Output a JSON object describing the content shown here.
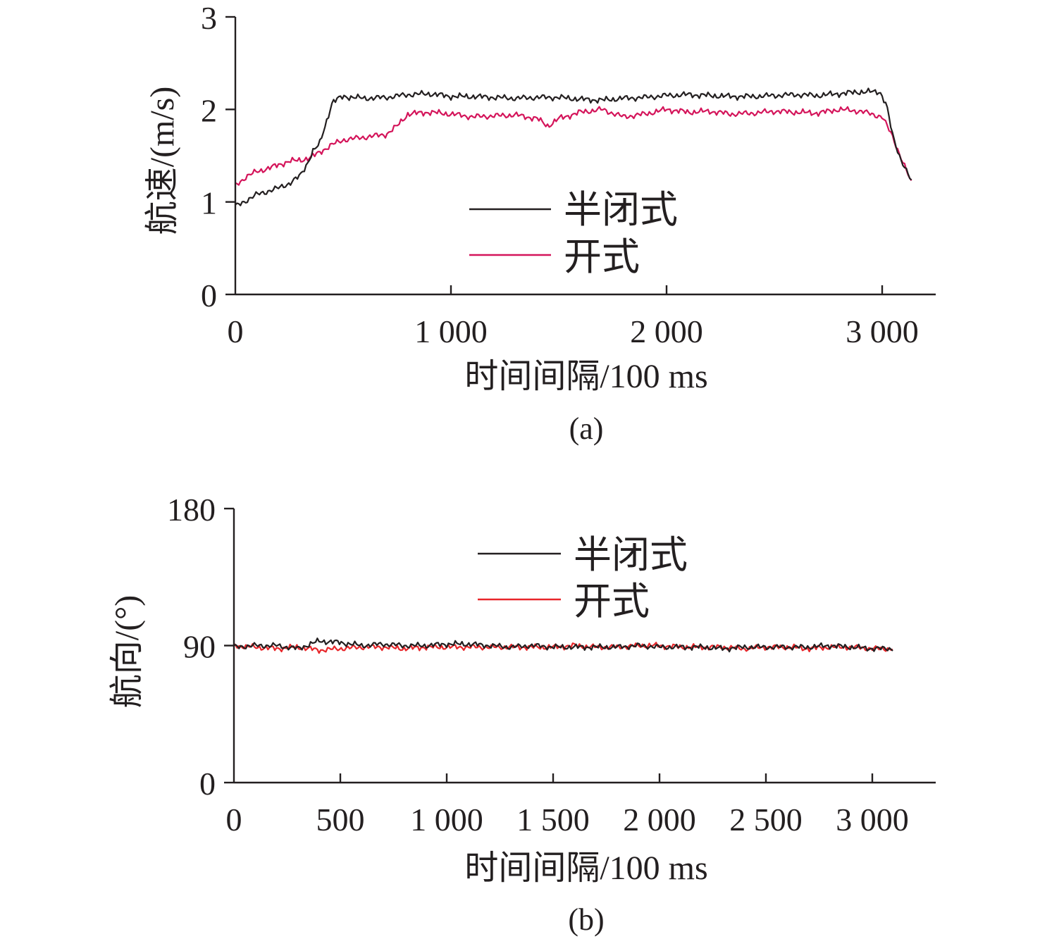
{
  "chart_data": [
    {
      "type": "line",
      "panel_label": "(a)",
      "xlabel": "时间间隔/100 ms",
      "ylabel": "航速/(m/s)",
      "xlim": [
        0,
        3250
      ],
      "ylim": [
        0,
        3
      ],
      "x_ticks": [
        0,
        1000,
        2000,
        3000
      ],
      "x_tick_labels": [
        "0",
        "1 000",
        "2 000",
        "3 000"
      ],
      "y_ticks": [
        0,
        1,
        2,
        3
      ],
      "y_tick_labels": [
        "0",
        "1",
        "2",
        "3"
      ],
      "legend_position": "center",
      "series": [
        {
          "name": "半闭式",
          "color": "#231f20",
          "points": [
            [
              0,
              0.95
            ],
            [
              100,
              1.08
            ],
            [
              200,
              1.15
            ],
            [
              250,
              1.2
            ],
            [
              300,
              1.28
            ],
            [
              330,
              1.4
            ],
            [
              360,
              1.55
            ],
            [
              390,
              1.62
            ],
            [
              420,
              1.85
            ],
            [
              450,
              2.08
            ],
            [
              500,
              2.14
            ],
            [
              600,
              2.12
            ],
            [
              700,
              2.13
            ],
            [
              800,
              2.16
            ],
            [
              900,
              2.17
            ],
            [
              1000,
              2.14
            ],
            [
              1100,
              2.14
            ],
            [
              1200,
              2.13
            ],
            [
              1300,
              2.12
            ],
            [
              1400,
              2.13
            ],
            [
              1500,
              2.13
            ],
            [
              1600,
              2.11
            ],
            [
              1700,
              2.1
            ],
            [
              1800,
              2.12
            ],
            [
              1900,
              2.13
            ],
            [
              2000,
              2.15
            ],
            [
              2100,
              2.16
            ],
            [
              2200,
              2.15
            ],
            [
              2300,
              2.14
            ],
            [
              2400,
              2.14
            ],
            [
              2500,
              2.15
            ],
            [
              2600,
              2.16
            ],
            [
              2700,
              2.15
            ],
            [
              2800,
              2.17
            ],
            [
              2900,
              2.19
            ],
            [
              2990,
              2.19
            ],
            [
              3020,
              2.05
            ],
            [
              3050,
              1.7
            ],
            [
              3080,
              1.5
            ],
            [
              3110,
              1.35
            ],
            [
              3140,
              1.2
            ]
          ]
        },
        {
          "name": "开式",
          "color": "#d4145a",
          "points": [
            [
              0,
              1.18
            ],
            [
              50,
              1.27
            ],
            [
              100,
              1.33
            ],
            [
              150,
              1.36
            ],
            [
              200,
              1.4
            ],
            [
              250,
              1.44
            ],
            [
              300,
              1.45
            ],
            [
              350,
              1.48
            ],
            [
              400,
              1.55
            ],
            [
              450,
              1.62
            ],
            [
              500,
              1.67
            ],
            [
              600,
              1.7
            ],
            [
              700,
              1.73
            ],
            [
              750,
              1.82
            ],
            [
              800,
              1.95
            ],
            [
              900,
              1.97
            ],
            [
              1000,
              1.95
            ],
            [
              1100,
              1.92
            ],
            [
              1200,
              1.93
            ],
            [
              1300,
              1.94
            ],
            [
              1400,
              1.9
            ],
            [
              1450,
              1.82
            ],
            [
              1500,
              1.9
            ],
            [
              1600,
              1.97
            ],
            [
              1700,
              2.0
            ],
            [
              1800,
              1.92
            ],
            [
              1900,
              1.95
            ],
            [
              2000,
              2.0
            ],
            [
              2100,
              1.97
            ],
            [
              2200,
              1.98
            ],
            [
              2300,
              1.95
            ],
            [
              2400,
              1.96
            ],
            [
              2500,
              1.98
            ],
            [
              2600,
              1.97
            ],
            [
              2700,
              1.96
            ],
            [
              2800,
              2.0
            ],
            [
              2900,
              1.98
            ],
            [
              2950,
              1.95
            ],
            [
              3000,
              1.92
            ],
            [
              3050,
              1.7
            ],
            [
              3080,
              1.52
            ],
            [
              3110,
              1.35
            ],
            [
              3140,
              1.18
            ]
          ]
        }
      ]
    },
    {
      "type": "line",
      "panel_label": "(b)",
      "xlabel": "时间间隔/100 ms",
      "ylabel": "航向/(°)",
      "xlim": [
        0,
        3300
      ],
      "ylim": [
        0,
        180
      ],
      "x_ticks": [
        0,
        500,
        1000,
        1500,
        2000,
        2500,
        3000
      ],
      "x_tick_labels": [
        "0",
        "500",
        "1 000",
        "1 500",
        "2 000",
        "2 500",
        "3 000"
      ],
      "y_ticks": [
        0,
        90,
        180
      ],
      "y_tick_labels": [
        "0",
        "90",
        "180"
      ],
      "legend_position": "top-center",
      "series": [
        {
          "name": "半闭式",
          "color": "#231f20",
          "points": [
            [
              0,
              89
            ],
            [
              100,
              90
            ],
            [
              200,
              90
            ],
            [
              300,
              88
            ],
            [
              400,
              93
            ],
            [
              500,
              92
            ],
            [
              600,
              90
            ],
            [
              700,
              91
            ],
            [
              800,
              90
            ],
            [
              900,
              90
            ],
            [
              1000,
              91
            ],
            [
              1100,
              91
            ],
            [
              1200,
              90
            ],
            [
              1300,
              89
            ],
            [
              1400,
              90
            ],
            [
              1500,
              89
            ],
            [
              1600,
              89
            ],
            [
              1700,
              89
            ],
            [
              1800,
              89
            ],
            [
              1900,
              90
            ],
            [
              2000,
              89
            ],
            [
              2100,
              89
            ],
            [
              2200,
              89
            ],
            [
              2300,
              88
            ],
            [
              2400,
              89
            ],
            [
              2500,
              89
            ],
            [
              2600,
              89
            ],
            [
              2700,
              89
            ],
            [
              2800,
              90
            ],
            [
              2900,
              89
            ],
            [
              3000,
              88
            ],
            [
              3100,
              88
            ]
          ]
        },
        {
          "name": "开式",
          "color": "#e8262a",
          "points": [
            [
              0,
              90
            ],
            [
              100,
              89
            ],
            [
              200,
              88
            ],
            [
              300,
              89
            ],
            [
              400,
              87
            ],
            [
              500,
              88
            ],
            [
              600,
              89
            ],
            [
              700,
              89
            ],
            [
              800,
              88
            ],
            [
              900,
              89
            ],
            [
              1000,
              89
            ],
            [
              1100,
              89
            ],
            [
              1200,
              89
            ],
            [
              1300,
              89
            ],
            [
              1400,
              89
            ],
            [
              1500,
              89
            ],
            [
              1600,
              90
            ],
            [
              1700,
              89
            ],
            [
              1800,
              89
            ],
            [
              1900,
              90
            ],
            [
              2000,
              90
            ],
            [
              2100,
              89
            ],
            [
              2200,
              89
            ],
            [
              2300,
              89
            ],
            [
              2400,
              88
            ],
            [
              2500,
              89
            ],
            [
              2600,
              89
            ],
            [
              2700,
              88
            ],
            [
              2800,
              89
            ],
            [
              2900,
              89
            ],
            [
              3000,
              88
            ],
            [
              3100,
              88
            ]
          ]
        }
      ]
    }
  ]
}
